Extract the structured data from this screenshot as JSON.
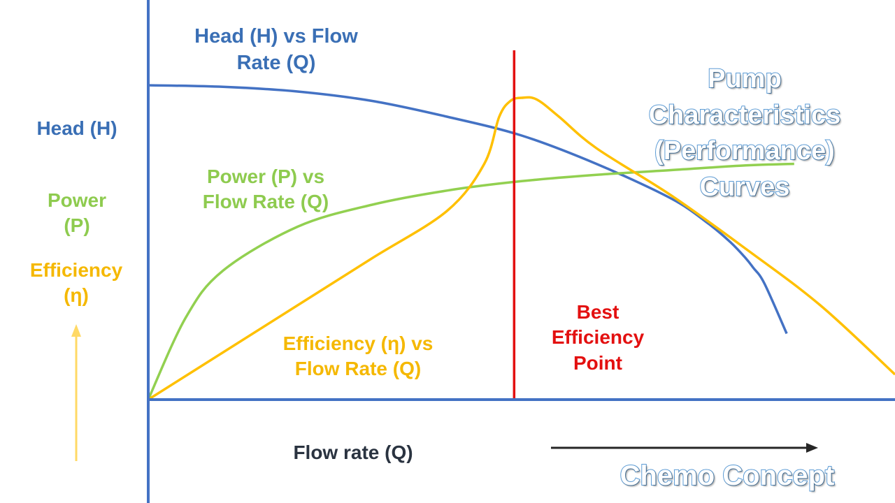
{
  "title_lines": [
    "Pump",
    "Characteristics",
    "(Performance)",
    "Curves"
  ],
  "watermark": "Chemo Concept",
  "y_labels": {
    "head": "Head (H)",
    "power_lines": [
      "Power",
      "(P)"
    ],
    "efficiency_lines": [
      "Efficiency",
      "(η)"
    ]
  },
  "x_label": "Flow rate (Q)",
  "curve_labels": {
    "head": [
      "Head (H) vs Flow",
      "Rate (Q)"
    ],
    "power": [
      "Power (P) vs",
      "Flow Rate (Q)"
    ],
    "efficiency": [
      "Efficiency (η) vs",
      "Flow Rate (Q)"
    ],
    "bep": [
      "Best",
      "Efficiency",
      "Point"
    ]
  },
  "colors": {
    "axis": "#4472c4",
    "head": "#4472c4",
    "power": "#92d050",
    "efficiency": "#ffc000",
    "bep": "#e31010",
    "arrow_up": "#ffd966",
    "arrow_right": "#262626"
  },
  "chart_data": {
    "type": "line",
    "title": "Pump Characteristics (Performance) Curves",
    "xlabel": "Flow rate (Q)",
    "ylabel": "Head (H) / Power (P) / Efficiency (η)",
    "xlim": [
      0,
      100
    ],
    "ylim": [
      0,
      100
    ],
    "grid": false,
    "legend": "none",
    "series": [
      {
        "name": "Head (H) vs Flow Rate (Q)",
        "x": [
          0,
          10,
          20,
          30,
          40,
          50,
          60,
          70,
          75,
          78,
          80,
          81,
          82.5,
          85.5
        ],
        "y": [
          100,
          99.5,
          98,
          95,
          90,
          84,
          75,
          64,
          56,
          50,
          45,
          42,
          37,
          21
        ]
      },
      {
        "name": "Power (P) vs Flow Rate (Q)",
        "x": [
          0,
          5,
          10,
          20,
          30,
          40,
          50,
          60,
          70,
          80,
          86.5
        ],
        "y": [
          0,
          26,
          41,
          55,
          62,
          66.5,
          69.5,
          71.5,
          73,
          74.5,
          75
        ]
      },
      {
        "name": "Efficiency (η) vs Flow Rate (Q)",
        "x": [
          0,
          10,
          20,
          30,
          40,
          45,
          47,
          48.5,
          50,
          52,
          55,
          60,
          70,
          80,
          90,
          100
        ],
        "y": [
          0,
          15,
          30,
          45,
          60,
          75,
          90,
          95,
          96,
          95.5,
          90,
          80,
          65,
          48,
          30,
          8
        ]
      }
    ],
    "annotations": [
      {
        "text": "Best Efficiency Point",
        "x": 49
      }
    ]
  }
}
